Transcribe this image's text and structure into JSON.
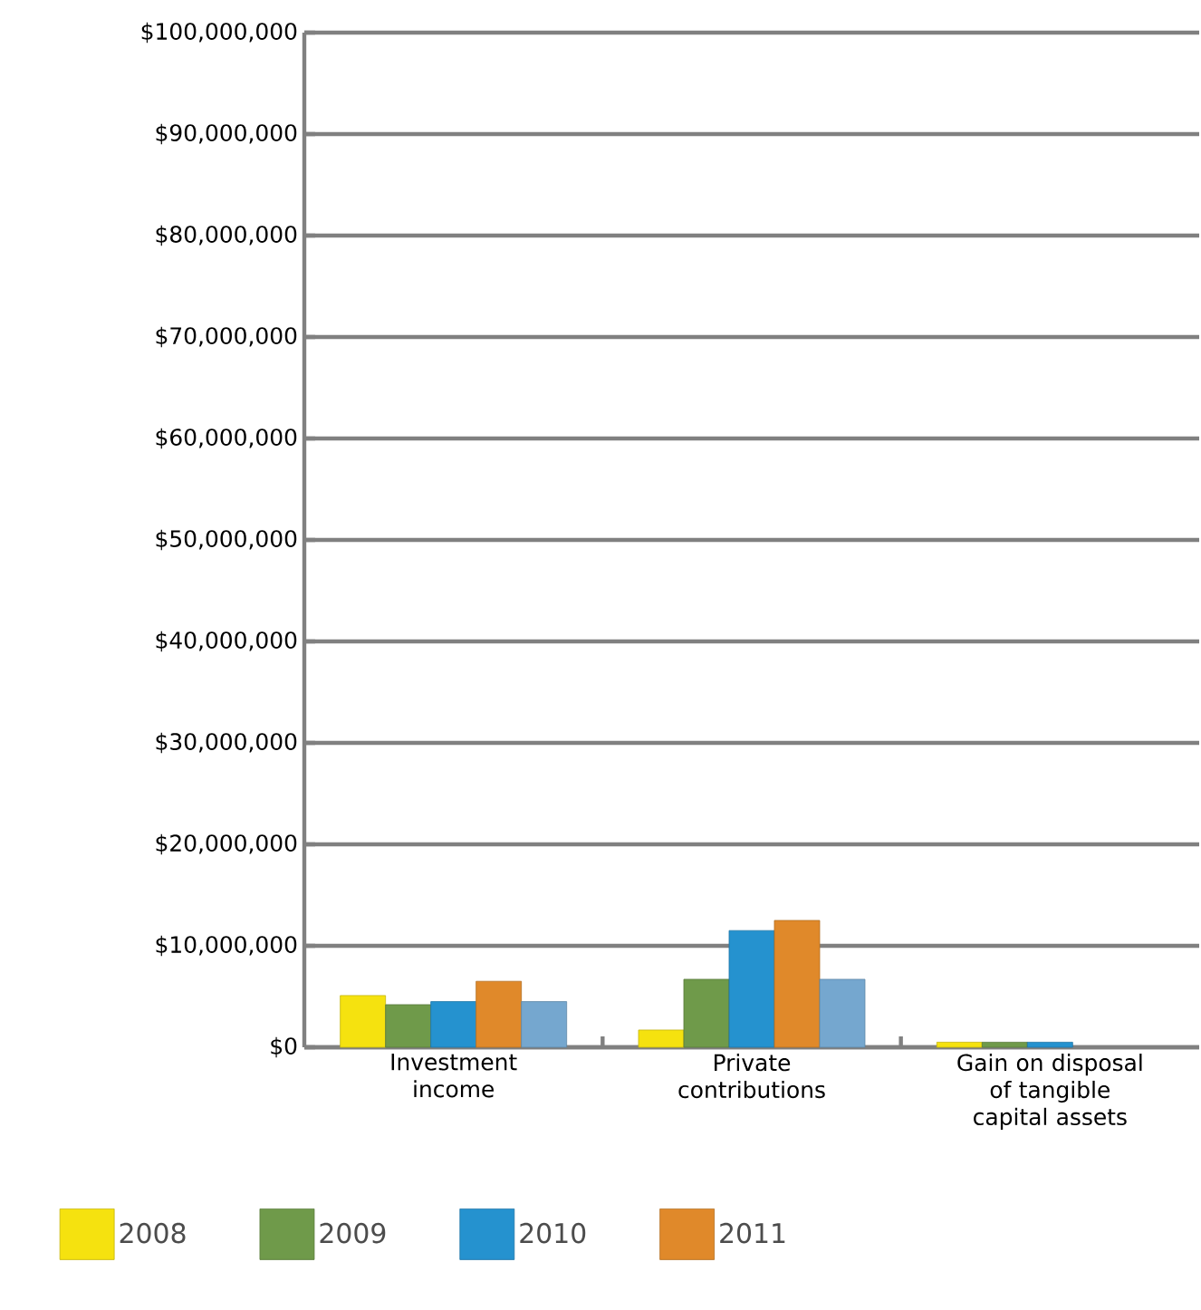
{
  "chart_data": {
    "type": "bar",
    "categories": [
      "Investment income",
      "Private contributions",
      "Gain on disposal of tangible capital assets"
    ],
    "series": [
      {
        "name": "2008",
        "color": "#f5e20f",
        "values": [
          5100000.0,
          1700000.0,
          500000.0
        ]
      },
      {
        "name": "2009",
        "color": "#6f9a4a",
        "values": [
          4200000.0,
          6700000.0,
          500000.0
        ]
      },
      {
        "name": "2010",
        "color": "#2592cf",
        "values": [
          4500000.0,
          11500000.0,
          500000.0
        ]
      },
      {
        "name": "2011",
        "color": "#e0892a",
        "values": [
          6500000.0,
          12500000.0,
          null
        ]
      },
      {
        "color": "#75a7cf",
        "values": [
          4500000.0,
          6700000.0,
          null
        ]
      }
    ],
    "ylim": [
      0,
      100000000
    ],
    "yticks": [
      {
        "value": 0,
        "label": "$0"
      },
      {
        "value": 10000000,
        "label": "$10,000,000"
      },
      {
        "value": 20000000,
        "label": "$20,000,000"
      },
      {
        "value": 30000000,
        "label": "$30,000,000"
      },
      {
        "value": 40000000,
        "label": "$40,000,000"
      },
      {
        "value": 50000000,
        "label": "$50,000,000"
      },
      {
        "value": 60000000,
        "label": "$60,000,000"
      },
      {
        "value": 70000000,
        "label": "$70,000,000"
      },
      {
        "value": 80000000,
        "label": "$80,000,000"
      },
      {
        "value": 90000000,
        "label": "$90,000,000"
      },
      {
        "value": 100000000,
        "label": "$100,000,000"
      }
    ],
    "grid": "y",
    "legend": "bottom"
  }
}
